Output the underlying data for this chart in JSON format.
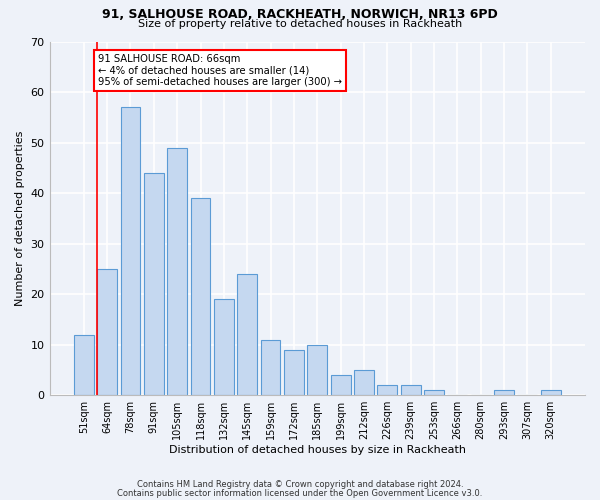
{
  "title1": "91, SALHOUSE ROAD, RACKHEATH, NORWICH, NR13 6PD",
  "title2": "Size of property relative to detached houses in Rackheath",
  "xlabel": "Distribution of detached houses by size in Rackheath",
  "ylabel": "Number of detached properties",
  "bar_labels": [
    "51sqm",
    "64sqm",
    "78sqm",
    "91sqm",
    "105sqm",
    "118sqm",
    "132sqm",
    "145sqm",
    "159sqm",
    "172sqm",
    "185sqm",
    "199sqm",
    "212sqm",
    "226sqm",
    "239sqm",
    "253sqm",
    "266sqm",
    "280sqm",
    "293sqm",
    "307sqm",
    "320sqm"
  ],
  "bar_values": [
    12,
    25,
    57,
    44,
    49,
    39,
    19,
    24,
    11,
    9,
    10,
    4,
    5,
    2,
    2,
    1,
    0,
    0,
    1,
    0,
    1
  ],
  "bar_color": "#c5d8f0",
  "bar_edge_color": "#5b9bd5",
  "annotation_box_text": "91 SALHOUSE ROAD: 66sqm\n← 4% of detached houses are smaller (14)\n95% of semi-detached houses are larger (300) →",
  "footnote1": "Contains HM Land Registry data © Crown copyright and database right 2024.",
  "footnote2": "Contains public sector information licensed under the Open Government Licence v3.0.",
  "background_color": "#eef2f9",
  "grid_color": "#ffffff",
  "ylim": [
    0,
    70
  ],
  "yticks": [
    0,
    10,
    20,
    30,
    40,
    50,
    60,
    70
  ]
}
